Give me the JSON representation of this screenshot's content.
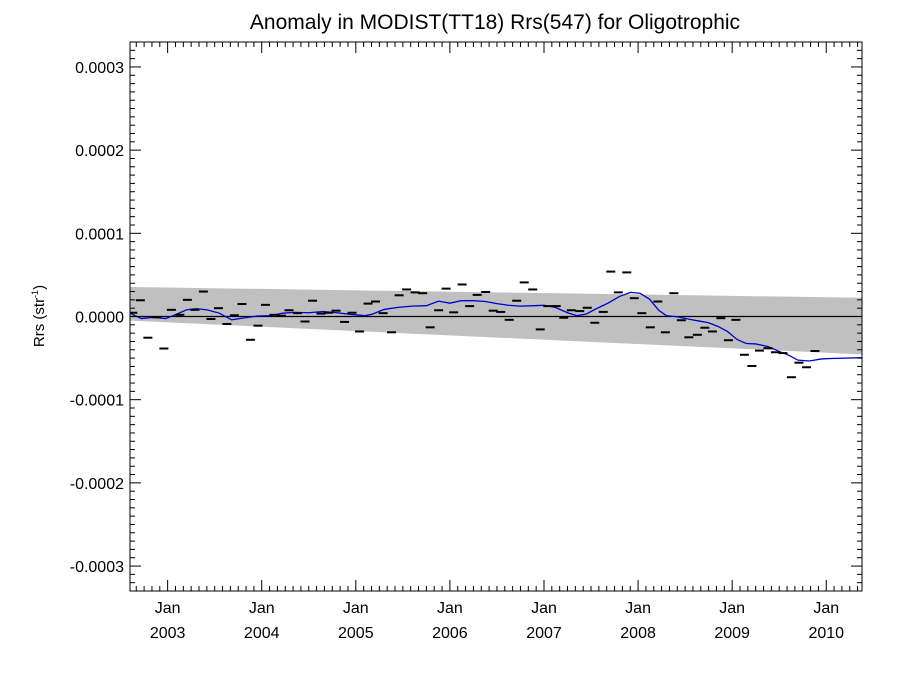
{
  "chart_data": {
    "type": "scatter",
    "title": "Anomaly in MODIST(TT18) Rrs(547) for Oligotrophic",
    "ylabel_main": "Rrs (str",
    "ylabel_sup": "-1",
    "ylabel_close": ")",
    "xlim": [
      2002.6,
      2010.38
    ],
    "ylim": [
      -0.00033,
      0.00033
    ],
    "yticks": [
      -0.0003,
      -0.0002,
      -0.0001,
      0.0,
      0.0001,
      0.0002,
      0.0003
    ],
    "ytick_labels": [
      "-0.0003",
      "-0.0002",
      "-0.0001",
      "0.0000",
      "0.0001",
      "0.0002",
      "0.0003"
    ],
    "xticks": [
      {
        "x": 2003.0,
        "month": "Jan",
        "year": "2003"
      },
      {
        "x": 2004.0,
        "month": "Jan",
        "year": "2004"
      },
      {
        "x": 2005.0,
        "month": "Jan",
        "year": "2005"
      },
      {
        "x": 2006.0,
        "month": "Jan",
        "year": "2006"
      },
      {
        "x": 2007.0,
        "month": "Jan",
        "year": "2007"
      },
      {
        "x": 2008.0,
        "month": "Jan",
        "year": "2008"
      },
      {
        "x": 2009.0,
        "month": "Jan",
        "year": "2009"
      },
      {
        "x": 2010.0,
        "month": "Jan",
        "year": "2010"
      }
    ],
    "zero_line": 0.0,
    "band": {
      "color": "#c0c0c0",
      "upper": [
        [
          2002.6,
          3.55e-05
        ],
        [
          2010.38,
          2.25e-05
        ]
      ],
      "lower": [
        [
          2002.6,
          -5e-06
        ],
        [
          2010.38,
          -4.55e-05
        ]
      ]
    },
    "points": [
      [
        2002.63,
        4.5e-06
      ],
      [
        2002.71,
        1.95e-05
      ],
      [
        2002.79,
        -2.55e-05
      ],
      [
        2002.88,
        -1e-06
      ],
      [
        2002.96,
        -3.85e-05
      ],
      [
        2003.04,
        8e-06
      ],
      [
        2003.13,
        2e-06
      ],
      [
        2003.21,
        2e-05
      ],
      [
        2003.29,
        8e-06
      ],
      [
        2003.38,
        3e-05
      ],
      [
        2003.46,
        -3e-06
      ],
      [
        2003.54,
        1e-05
      ],
      [
        2003.63,
        -9e-06
      ],
      [
        2003.71,
        1.5e-06
      ],
      [
        2003.79,
        1.5e-05
      ],
      [
        2003.88,
        -2.8e-05
      ],
      [
        2003.96,
        -1.1e-05
      ],
      [
        2004.04,
        1.4e-05
      ],
      [
        2004.13,
        2e-06
      ],
      [
        2004.21,
        1e-06
      ],
      [
        2004.29,
        7.5e-06
      ],
      [
        2004.38,
        4e-06
      ],
      [
        2004.46,
        -6e-06
      ],
      [
        2004.54,
        1.9e-05
      ],
      [
        2004.63,
        3.5e-06
      ],
      [
        2004.71,
        4.5e-06
      ],
      [
        2004.79,
        7e-06
      ],
      [
        2004.88,
        -6.5e-06
      ],
      [
        2004.96,
        4.5e-06
      ],
      [
        2005.04,
        -1.8e-05
      ],
      [
        2005.13,
        1.55e-05
      ],
      [
        2005.21,
        1.8e-05
      ],
      [
        2005.29,
        4e-06
      ],
      [
        2005.38,
        -1.9e-05
      ],
      [
        2005.46,
        2.55e-05
      ],
      [
        2005.54,
        3.25e-05
      ],
      [
        2005.63,
        2.9e-05
      ],
      [
        2005.71,
        2.8e-05
      ],
      [
        2005.79,
        -1.3e-05
      ],
      [
        2005.88,
        7.5e-06
      ],
      [
        2005.96,
        3.35e-05
      ],
      [
        2006.04,
        5e-06
      ],
      [
        2006.13,
        3.85e-05
      ],
      [
        2006.21,
        1.25e-05
      ],
      [
        2006.29,
        2.6e-05
      ],
      [
        2006.38,
        2.95e-05
      ],
      [
        2006.46,
        7e-06
      ],
      [
        2006.54,
        5.5e-06
      ],
      [
        2006.63,
        -4e-06
      ],
      [
        2006.71,
        1.9e-05
      ],
      [
        2006.79,
        4.1e-05
      ],
      [
        2006.88,
        3.25e-05
      ],
      [
        2006.96,
        -1.55e-05
      ],
      [
        2007.04,
        1.25e-05
      ],
      [
        2007.13,
        1.25e-05
      ],
      [
        2007.21,
        -1.5e-06
      ],
      [
        2007.29,
        7.5e-06
      ],
      [
        2007.38,
        6.5e-06
      ],
      [
        2007.46,
        1.05e-05
      ],
      [
        2007.54,
        -7.5e-06
      ],
      [
        2007.63,
        5.5e-06
      ],
      [
        2007.71,
        5.4e-05
      ],
      [
        2007.79,
        2.9e-05
      ],
      [
        2007.88,
        5.3e-05
      ],
      [
        2007.96,
        2.2e-05
      ],
      [
        2008.04,
        4e-06
      ],
      [
        2008.13,
        -1.3e-05
      ],
      [
        2008.21,
        1.8e-05
      ],
      [
        2008.29,
        -1.9e-05
      ],
      [
        2008.38,
        2.8e-05
      ],
      [
        2008.46,
        -4.5e-06
      ],
      [
        2008.54,
        -2.5e-05
      ],
      [
        2008.63,
        -2.2e-05
      ],
      [
        2008.71,
        -1.35e-05
      ],
      [
        2008.79,
        -1.8e-05
      ],
      [
        2008.88,
        -2e-06
      ],
      [
        2008.96,
        -2.85e-05
      ],
      [
        2009.04,
        -4e-06
      ],
      [
        2009.13,
        -4.6e-05
      ],
      [
        2009.21,
        -5.95e-05
      ],
      [
        2009.29,
        -4.1e-05
      ],
      [
        2009.38,
        -3.8e-05
      ],
      [
        2009.46,
        -4.3e-05
      ],
      [
        2009.54,
        -4.4e-05
      ],
      [
        2009.63,
        -7.3e-05
      ],
      [
        2009.71,
        -5.55e-05
      ],
      [
        2009.79,
        -6.1e-05
      ],
      [
        2009.88,
        -4.15e-05
      ]
    ],
    "smooth_line": {
      "color": "#0000cc",
      "points": [
        [
          2002.6,
          4e-06
        ],
        [
          2002.72,
          -2.5e-06
        ],
        [
          2002.85,
          -1e-06
        ],
        [
          2002.98,
          -2.5e-06
        ],
        [
          2003.1,
          3e-06
        ],
        [
          2003.2,
          8e-06
        ],
        [
          2003.3,
          9.5e-06
        ],
        [
          2003.42,
          8e-06
        ],
        [
          2003.55,
          4e-06
        ],
        [
          2003.68,
          -4e-06
        ],
        [
          2003.8,
          -2e-06
        ],
        [
          2003.95,
          5e-07
        ],
        [
          2004.1,
          1e-06
        ],
        [
          2004.22,
          4e-06
        ],
        [
          2004.35,
          5e-06
        ],
        [
          2004.5,
          4.5e-06
        ],
        [
          2004.65,
          6e-06
        ],
        [
          2004.8,
          4.5e-06
        ],
        [
          2004.95,
          2.5e-06
        ],
        [
          2005.1,
          1e-06
        ],
        [
          2005.18,
          3e-06
        ],
        [
          2005.3,
          8.5e-06
        ],
        [
          2005.45,
          1.1e-05
        ],
        [
          2005.6,
          1.25e-05
        ],
        [
          2005.75,
          1.3e-05
        ],
        [
          2005.88,
          1.85e-05
        ],
        [
          2006.0,
          1.6e-05
        ],
        [
          2006.12,
          1.9e-05
        ],
        [
          2006.25,
          1.9e-05
        ],
        [
          2006.38,
          1.8e-05
        ],
        [
          2006.5,
          1.55e-05
        ],
        [
          2006.62,
          1.35e-05
        ],
        [
          2006.75,
          1.25e-05
        ],
        [
          2006.9,
          1.3e-05
        ],
        [
          2007.0,
          1.35e-05
        ],
        [
          2007.12,
          1.1e-05
        ],
        [
          2007.25,
          4.5e-06
        ],
        [
          2007.35,
          1e-06
        ],
        [
          2007.45,
          3e-06
        ],
        [
          2007.55,
          9e-06
        ],
        [
          2007.68,
          1.6e-05
        ],
        [
          2007.8,
          2.4e-05
        ],
        [
          2007.92,
          2.9e-05
        ],
        [
          2008.02,
          2.8e-05
        ],
        [
          2008.12,
          2.1e-05
        ],
        [
          2008.22,
          7.5e-06
        ],
        [
          2008.3,
          1e-06
        ],
        [
          2008.42,
          -5e-07
        ],
        [
          2008.55,
          -3.5e-06
        ],
        [
          2008.65,
          -5.5e-06
        ],
        [
          2008.75,
          -7.5e-06
        ],
        [
          2008.85,
          -1.2e-05
        ],
        [
          2008.95,
          -1.8e-05
        ],
        [
          2009.05,
          -2.75e-05
        ],
        [
          2009.15,
          -3.25e-05
        ],
        [
          2009.25,
          -3.3e-05
        ],
        [
          2009.38,
          -3.6e-05
        ],
        [
          2009.5,
          -4.2e-05
        ],
        [
          2009.6,
          -4.65e-05
        ],
        [
          2009.7,
          -5.25e-05
        ],
        [
          2009.82,
          -5.35e-05
        ],
        [
          2009.95,
          -5.1e-05
        ],
        [
          2010.05,
          -5.05e-05
        ],
        [
          2010.38,
          -4.95e-05
        ]
      ]
    }
  }
}
